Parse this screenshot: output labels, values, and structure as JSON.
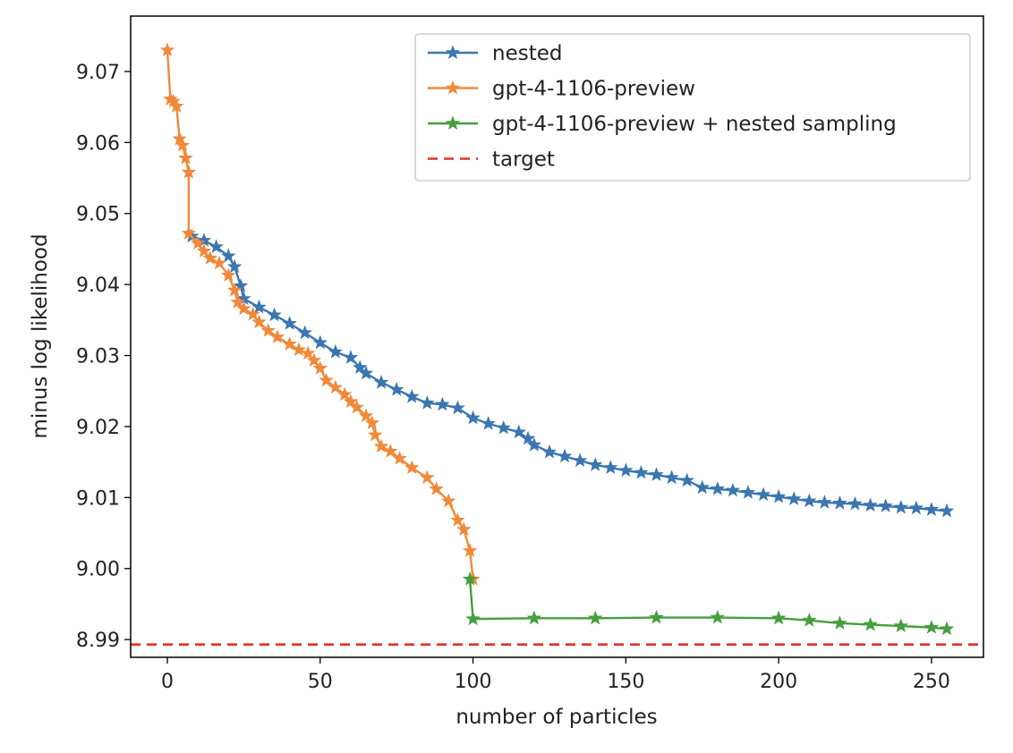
{
  "chart_data": {
    "type": "line",
    "title": "",
    "xlabel": "number of particles",
    "ylabel": "minus log likelihood",
    "xlim": [
      -12,
      267
    ],
    "ylim": [
      8.9875,
      9.0778
    ],
    "xticks": [
      0,
      50,
      100,
      150,
      200,
      250
    ],
    "xtick_labels": [
      "0",
      "50",
      "100",
      "150",
      "200",
      "250"
    ],
    "yticks": [
      8.99,
      9.0,
      9.01,
      9.02,
      9.03,
      9.04,
      9.05,
      9.06,
      9.07
    ],
    "ytick_labels": [
      "8.99",
      "9.00",
      "9.01",
      "9.02",
      "9.03",
      "9.04",
      "9.05",
      "9.06",
      "9.07"
    ],
    "grid": false,
    "legend_position": "top-right",
    "series": [
      {
        "name": "nested",
        "color": "#3b76b0",
        "marker": "star",
        "points": [
          [
            8,
            9.0468
          ],
          [
            12,
            9.0462
          ],
          [
            16,
            9.0453
          ],
          [
            20,
            9.044
          ],
          [
            22,
            9.0425
          ],
          [
            24,
            9.0398
          ],
          [
            25,
            9.038
          ],
          [
            30,
            9.0368
          ],
          [
            35,
            9.0357
          ],
          [
            40,
            9.0345
          ],
          [
            45,
            9.0332
          ],
          [
            50,
            9.0318
          ],
          [
            55,
            9.0305
          ],
          [
            60,
            9.0297
          ],
          [
            63,
            9.0283
          ],
          [
            65,
            9.0275
          ],
          [
            70,
            9.0262
          ],
          [
            75,
            9.0252
          ],
          [
            80,
            9.0242
          ],
          [
            85,
            9.0233
          ],
          [
            90,
            9.0231
          ],
          [
            95,
            9.0226
          ],
          [
            100,
            9.0212
          ],
          [
            105,
            9.0204
          ],
          [
            110,
            9.0198
          ],
          [
            115,
            9.0192
          ],
          [
            118,
            9.0183
          ],
          [
            120,
            9.0174
          ],
          [
            125,
            9.0164
          ],
          [
            130,
            9.0158
          ],
          [
            135,
            9.0152
          ],
          [
            140,
            9.0146
          ],
          [
            145,
            9.0142
          ],
          [
            150,
            9.0138
          ],
          [
            155,
            9.0135
          ],
          [
            160,
            9.0132
          ],
          [
            165,
            9.0128
          ],
          [
            170,
            9.0124
          ],
          [
            175,
            9.0114
          ],
          [
            180,
            9.0112
          ],
          [
            185,
            9.011
          ],
          [
            190,
            9.0107
          ],
          [
            195,
            9.0104
          ],
          [
            200,
            9.0101
          ],
          [
            205,
            9.0098
          ],
          [
            210,
            9.0095
          ],
          [
            215,
            9.0093
          ],
          [
            220,
            9.0092
          ],
          [
            225,
            9.0091
          ],
          [
            230,
            9.0089
          ],
          [
            235,
            9.0088
          ],
          [
            240,
            9.0086
          ],
          [
            245,
            9.0085
          ],
          [
            250,
            9.0083
          ],
          [
            255,
            9.0081
          ]
        ]
      },
      {
        "name": "gpt-4-1106-preview",
        "color": "#f1893a",
        "marker": "star",
        "points": [
          [
            0,
            9.073
          ],
          [
            1,
            9.0661
          ],
          [
            2,
            9.0658
          ],
          [
            3,
            9.0651
          ],
          [
            4,
            9.0605
          ],
          [
            5,
            9.0596
          ],
          [
            6,
            9.0578
          ],
          [
            7,
            9.0558
          ],
          [
            7,
            9.0472
          ],
          [
            10,
            9.0458
          ],
          [
            12,
            9.0447
          ],
          [
            14,
            9.0437
          ],
          [
            17,
            9.043
          ],
          [
            20,
            9.0413
          ],
          [
            22,
            9.0392
          ],
          [
            23,
            9.0375
          ],
          [
            25,
            9.0366
          ],
          [
            28,
            9.0358
          ],
          [
            30,
            9.0347
          ],
          [
            33,
            9.0335
          ],
          [
            36,
            9.0326
          ],
          [
            40,
            9.0316
          ],
          [
            43,
            9.0308
          ],
          [
            46,
            9.0303
          ],
          [
            48,
            9.0293
          ],
          [
            50,
            9.0282
          ],
          [
            52,
            9.0265
          ],
          [
            55,
            9.0255
          ],
          [
            58,
            9.0245
          ],
          [
            60,
            9.0235
          ],
          [
            62,
            9.0227
          ],
          [
            65,
            9.0215
          ],
          [
            67,
            9.0205
          ],
          [
            68,
            9.0188
          ],
          [
            70,
            9.0172
          ],
          [
            73,
            9.0165
          ],
          [
            76,
            9.0155
          ],
          [
            80,
            9.0142
          ],
          [
            85,
            9.0128
          ],
          [
            88,
            9.0112
          ],
          [
            92,
            9.0095
          ],
          [
            95,
            9.0068
          ],
          [
            97,
            9.0055
          ],
          [
            99,
            9.0025
          ],
          [
            100,
            8.9985
          ]
        ]
      },
      {
        "name": "gpt-4-1106-preview + nested sampling",
        "color": "#469e3f",
        "marker": "star",
        "points": [
          [
            99,
            8.9985
          ],
          [
            100,
            8.9929
          ],
          [
            120,
            8.993
          ],
          [
            140,
            8.993
          ],
          [
            160,
            8.9931
          ],
          [
            180,
            8.9931
          ],
          [
            200,
            8.993
          ],
          [
            210,
            8.9927
          ],
          [
            220,
            8.9923
          ],
          [
            230,
            8.9921
          ],
          [
            240,
            8.9919
          ],
          [
            250,
            8.9917
          ],
          [
            255,
            8.9915
          ]
        ]
      },
      {
        "name": "target",
        "color": "#e0302b",
        "linestyle": "dashed",
        "y": 8.9893
      }
    ]
  }
}
